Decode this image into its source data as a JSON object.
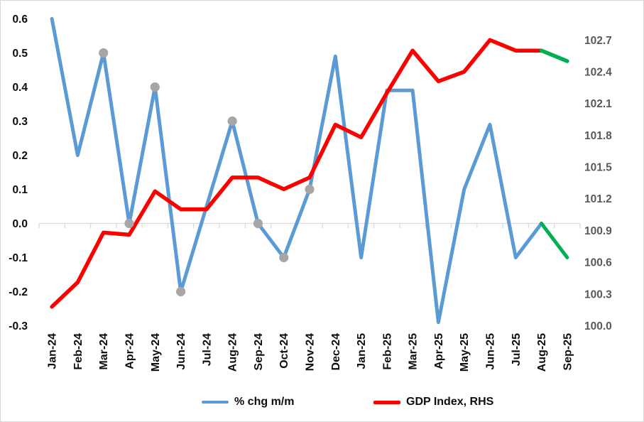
{
  "chart_data": {
    "type": "line",
    "title": "",
    "xlabel": "",
    "ylabel": "",
    "categories": [
      "Jan-24",
      "Feb-24",
      "Mar-24",
      "Apr-24",
      "May-24",
      "Jun-24",
      "Jul-24",
      "Aug-24",
      "Sep-24",
      "Oct-24",
      "Nov-24",
      "Dec-24",
      "Jan-25",
      "Feb-25",
      "Mar-25",
      "Apr-25",
      "May-25",
      "Jun-25",
      "Jul-25",
      "Aug-25",
      "Sep-25"
    ],
    "series": [
      {
        "name": "% chg m/m",
        "axis": "left",
        "color": "#5B9BD5",
        "stroke_width": 5,
        "values": [
          0.6,
          0.2,
          0.5,
          0.0,
          0.4,
          -0.2,
          0.05,
          0.3,
          0.0,
          -0.1,
          0.1,
          0.49,
          -0.1,
          0.39,
          0.39,
          -0.29,
          0.1,
          0.29,
          -0.1,
          0.0,
          -0.1
        ],
        "marker_indices": [
          2,
          3,
          4,
          5,
          7,
          8,
          9,
          10
        ],
        "forecast_last_segment": true
      },
      {
        "name": "GDP Index, RHS",
        "axis": "right",
        "color": "#FF0000",
        "stroke_width": 5.5,
        "values": [
          100.18,
          100.41,
          100.88,
          100.86,
          101.27,
          101.1,
          101.1,
          101.4,
          101.4,
          101.29,
          101.4,
          101.9,
          101.78,
          102.2,
          102.6,
          102.31,
          102.4,
          102.7,
          102.6,
          102.6,
          102.5
        ],
        "marker_indices": [],
        "forecast_last_segment": true
      }
    ],
    "left_axis": {
      "min": -0.3,
      "max": 0.6,
      "tick_labels": [
        "0.6",
        "0.5",
        "0.4",
        "0.3",
        "0.2",
        "0.1",
        "0.0",
        "-0.1",
        "-0.2",
        "-0.3"
      ]
    },
    "right_axis": {
      "min": 100.0,
      "max": 102.9,
      "tick_labels": [
        "102.7",
        "102.4",
        "102.1",
        "101.8",
        "101.5",
        "101.2",
        "100.9",
        "100.6",
        "100.3",
        "100.0"
      ]
    },
    "grid": false,
    "legend_position": "bottom",
    "forecast_color": "#00B050",
    "marker_color": "#A6A6A6",
    "axis_line_color": "#D9D9D9",
    "left_label_color": "#0d0d0d",
    "right_label_color": "#595959",
    "x_label_color": "#0d0d0d"
  },
  "legend": {
    "items": [
      {
        "label": "% chg m/m",
        "color": "#5B9BD5",
        "thickness": 4
      },
      {
        "label": "GDP Index, RHS",
        "color": "#FF0000",
        "thickness": 5
      }
    ]
  }
}
